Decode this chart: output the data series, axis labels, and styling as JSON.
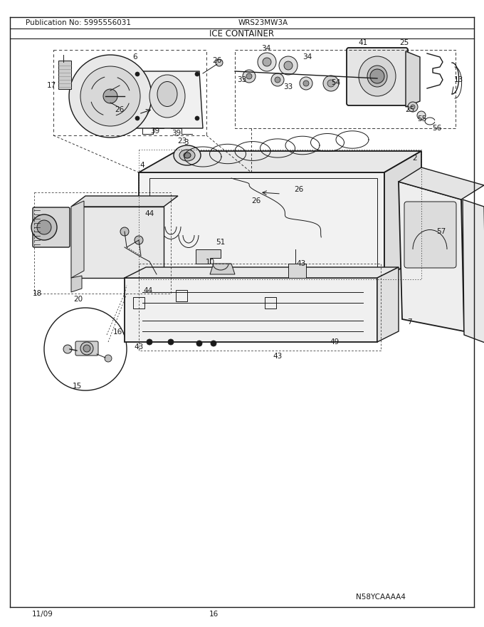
{
  "title": "ICE CONTAINER",
  "pub_no": "Publication No: 5995556031",
  "model": "WRS23MW3A",
  "date": "11/09",
  "page": "16",
  "image_id": "N58YCAAAA4",
  "bg_color": "#ffffff",
  "text_color": "#000000",
  "figsize": [
    6.8,
    8.8
  ],
  "dpi": 100
}
